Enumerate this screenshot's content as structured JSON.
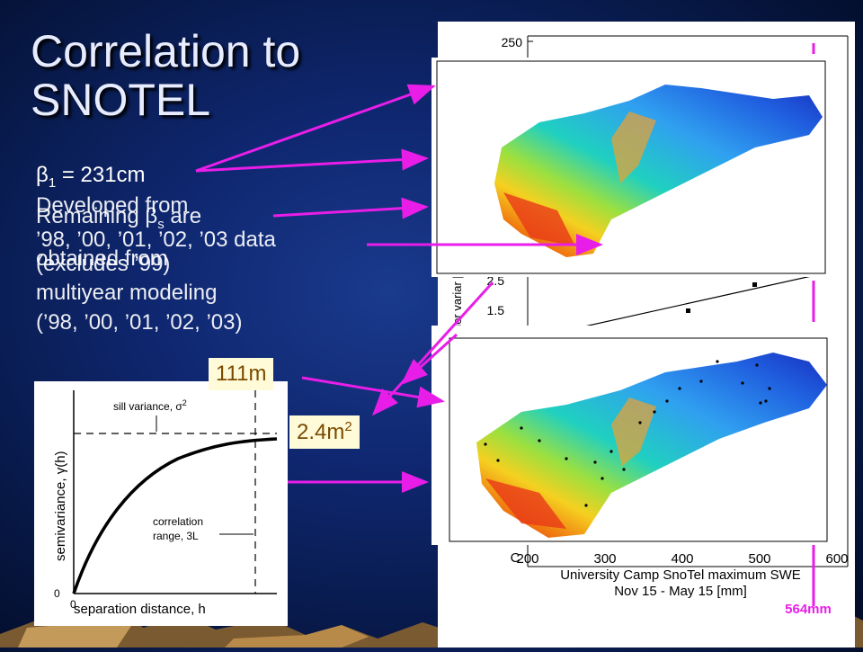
{
  "title": "Correlation to SNOTEL",
  "left_text": {
    "beta1_symbol": "β",
    "beta1_sub": "1",
    "beta1_value": " = 231cm",
    "developed_line1": "Developed from",
    "developed_line2": "’98, ’00, ’01, ’02, ’03 data",
    "developed_line3": "(excludes ’99)",
    "remaining_line1": "Remaining ",
    "remaining_beta": "β",
    "remaining_sub": "s",
    "remaining_tail": " are",
    "remaining_line2": "obtained from",
    "remaining_line3": "multiyear modeling",
    "remaining_line4": "(’98, ’00, ’01, ’02, ’03)"
  },
  "labels": {
    "range_value": "111m",
    "sill_value": "2.4m",
    "sill_sup": "2",
    "swe_value": "564mm"
  },
  "scatter_plot": {
    "y_tick_top": "250",
    "y_label_partial": "xponer variar [m",
    "y_tick_25": "2.5",
    "y_tick_15": "1.5",
    "x_ticks": [
      "200",
      "300",
      "400",
      "500",
      "600"
    ],
    "x_tick_partial": "C",
    "xlabel_line1": "University Camp SnoTel maximum SWE",
    "xlabel_line2": "Nov 15 - May 15 [mm]"
  },
  "variogram": {
    "sill_label": "sill variance, σ",
    "sill_sup": "2",
    "ylabel": "semivariance, γ(h)",
    "corr_label_line1": "correlation",
    "corr_label_line2": "range, 3L",
    "xlabel": "separation distance, h",
    "origin_x": "0",
    "origin_y": "0"
  },
  "colors": {
    "accent_arrow": "#e81ee8",
    "label_text": "#7a4a00",
    "label_bg": "#fffbd9"
  }
}
